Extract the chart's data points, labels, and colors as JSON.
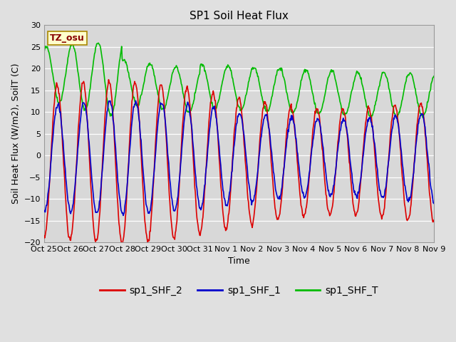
{
  "title": "SP1 Soil Heat Flux",
  "xlabel": "Time",
  "ylabel": "Soil Heat Flux (W/m2), SoilT (C)",
  "ylim": [
    -20,
    30
  ],
  "yticks": [
    -20,
    -15,
    -10,
    -5,
    0,
    5,
    10,
    15,
    20,
    25,
    30
  ],
  "x_tick_labels": [
    "Oct 25",
    "Oct 26",
    "Oct 27",
    "Oct 28",
    "Oct 29",
    "Oct 30",
    "Oct 31",
    "Nov 1",
    "Nov 2",
    "Nov 3",
    "Nov 4",
    "Nov 5",
    "Nov 6",
    "Nov 7",
    "Nov 8",
    "Nov 9"
  ],
  "n_days": 15,
  "annotation_text": "TZ_osu",
  "annotation_color": "#880000",
  "annotation_bg": "#ffffcc",
  "annotation_border": "#aa8800",
  "legend_labels": [
    "sp1_SHF_2",
    "sp1_SHF_1",
    "sp1_SHF_T"
  ],
  "colors": [
    "#dd0000",
    "#0000cc",
    "#00bb00"
  ],
  "line_width": 1.2,
  "bg_color": "#e0e0e0",
  "plot_bg": "#d8d8d8",
  "grid_color": "#ffffff",
  "title_fontsize": 11,
  "label_fontsize": 9,
  "tick_fontsize": 8,
  "legend_fontsize": 10
}
